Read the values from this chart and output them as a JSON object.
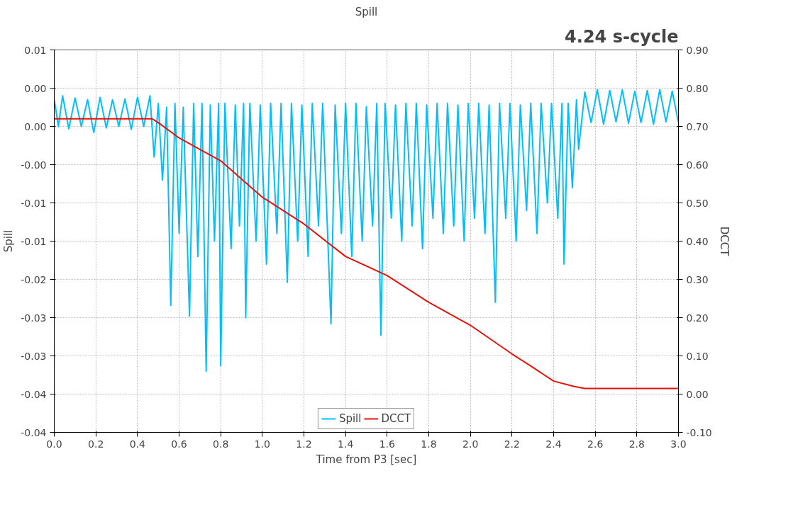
{
  "chart_data": {
    "type": "line",
    "title": "Spill",
    "xlabel": "Time from P3 [sec]",
    "ylabel": "Spill",
    "y2label": "DCCT",
    "annotations": [
      "4.24 s-cycle"
    ],
    "xlim": [
      0,
      3
    ],
    "xticks": [
      {
        "value": 0,
        "label": "0.0"
      },
      {
        "value": 0.2,
        "label": "0.2"
      },
      {
        "value": 0.4,
        "label": "0.4"
      },
      {
        "value": 0.6,
        "label": "0.6"
      },
      {
        "value": 0.8,
        "label": "0.8"
      },
      {
        "value": 1.0,
        "label": "1.0"
      },
      {
        "value": 1.2,
        "label": "1.2"
      },
      {
        "value": 1.4,
        "label": "1.4"
      },
      {
        "value": 1.6,
        "label": "1.6"
      },
      {
        "value": 1.8,
        "label": "1.8"
      },
      {
        "value": 2.0,
        "label": "2.0"
      },
      {
        "value": 2.2,
        "label": "2.2"
      },
      {
        "value": 2.4,
        "label": "2.4"
      },
      {
        "value": 2.6,
        "label": "2.6"
      },
      {
        "value": 2.8,
        "label": "2.8"
      },
      {
        "value": 3.0,
        "label": "3.0"
      }
    ],
    "ylim": [
      -0.04,
      0.01
    ],
    "yticks": [
      {
        "value": 0.01,
        "label": "0.01"
      },
      {
        "value": 0.005,
        "label": "0.00"
      },
      {
        "value": 0,
        "label": "0.00"
      },
      {
        "value": -0.005,
        "label": "-0.00"
      },
      {
        "value": -0.01,
        "label": "-0.01"
      },
      {
        "value": -0.015,
        "label": "-0.01"
      },
      {
        "value": -0.02,
        "label": "-0.02"
      },
      {
        "value": -0.025,
        "label": "-0.03"
      },
      {
        "value": -0.03,
        "label": "-0.03"
      },
      {
        "value": -0.035,
        "label": "-0.04"
      },
      {
        "value": -0.04,
        "label": "-0.04"
      }
    ],
    "y2lim": [
      -0.1,
      0.9
    ],
    "y2ticks": [
      {
        "value": 0.9,
        "label": "0.90"
      },
      {
        "value": 0.8,
        "label": "0.80"
      },
      {
        "value": 0.7,
        "label": "0.70"
      },
      {
        "value": 0.6,
        "label": "0.60"
      },
      {
        "value": 0.5,
        "label": "0.50"
      },
      {
        "value": 0.4,
        "label": "0.40"
      },
      {
        "value": 0.3,
        "label": "0.30"
      },
      {
        "value": 0.2,
        "label": "0.20"
      },
      {
        "value": 0.1,
        "label": "0.10"
      },
      {
        "value": 0.0,
        "label": "0.00"
      },
      {
        "value": -0.1,
        "label": "-0.10"
      }
    ],
    "grid": true,
    "legend": "bottom",
    "series": [
      {
        "name": "Spill",
        "color": "#00bfff",
        "x": [
          0.0,
          0.02,
          0.04,
          0.07,
          0.1,
          0.13,
          0.16,
          0.19,
          0.22,
          0.25,
          0.28,
          0.31,
          0.34,
          0.37,
          0.4,
          0.43,
          0.46,
          0.48,
          0.5,
          0.52,
          0.54,
          0.56,
          0.58,
          0.6,
          0.62,
          0.65,
          0.67,
          0.69,
          0.71,
          0.73,
          0.75,
          0.77,
          0.79,
          0.8,
          0.82,
          0.85,
          0.87,
          0.89,
          0.91,
          0.92,
          0.94,
          0.97,
          0.99,
          1.02,
          1.04,
          1.07,
          1.09,
          1.12,
          1.14,
          1.17,
          1.19,
          1.22,
          1.24,
          1.27,
          1.29,
          1.33,
          1.35,
          1.38,
          1.4,
          1.43,
          1.45,
          1.48,
          1.5,
          1.53,
          1.55,
          1.57,
          1.59,
          1.62,
          1.64,
          1.67,
          1.69,
          1.72,
          1.74,
          1.77,
          1.79,
          1.82,
          1.84,
          1.87,
          1.89,
          1.92,
          1.94,
          1.97,
          1.99,
          2.02,
          2.04,
          2.07,
          2.09,
          2.12,
          2.14,
          2.17,
          2.19,
          2.22,
          2.24,
          2.27,
          2.29,
          2.32,
          2.34,
          2.37,
          2.39,
          2.42,
          2.44,
          2.45,
          2.47,
          2.49,
          2.51,
          2.52,
          2.55,
          2.58,
          2.61,
          2.64,
          2.67,
          2.7,
          2.73,
          2.76,
          2.79,
          2.82,
          2.85,
          2.88,
          2.91,
          2.94,
          2.97,
          3.0
        ],
        "values": [
          0.0035,
          0.0,
          0.004,
          -0.0003,
          0.0037,
          0.0,
          0.0035,
          -0.0008,
          0.0038,
          -0.0002,
          0.0035,
          0.0,
          0.0036,
          -0.0004,
          0.0038,
          0.0,
          0.004,
          -0.004,
          0.003,
          -0.007,
          0.0025,
          -0.0234,
          0.003,
          -0.014,
          0.0025,
          -0.0248,
          0.003,
          -0.017,
          0.003,
          -0.032,
          0.0028,
          -0.015,
          0.003,
          -0.0313,
          0.003,
          -0.016,
          0.0028,
          -0.013,
          0.003,
          -0.025,
          0.003,
          -0.015,
          0.0028,
          -0.018,
          0.003,
          -0.014,
          0.003,
          -0.0204,
          0.003,
          -0.015,
          0.0028,
          -0.017,
          0.003,
          -0.013,
          0.003,
          -0.0258,
          0.0028,
          -0.014,
          0.003,
          -0.017,
          0.003,
          -0.015,
          0.0026,
          -0.013,
          0.003,
          -0.0273,
          0.003,
          -0.012,
          0.0028,
          -0.015,
          0.003,
          -0.013,
          0.003,
          -0.016,
          0.0028,
          -0.012,
          0.003,
          -0.014,
          0.003,
          -0.013,
          0.0028,
          -0.015,
          0.003,
          -0.012,
          0.003,
          -0.014,
          0.0028,
          -0.023,
          0.003,
          -0.012,
          0.003,
          -0.015,
          0.0028,
          -0.011,
          0.003,
          -0.014,
          0.003,
          -0.01,
          0.003,
          -0.012,
          0.003,
          -0.018,
          0.003,
          -0.008,
          0.0035,
          -0.003,
          0.0045,
          0.0005,
          0.0048,
          0.0003,
          0.0047,
          0.0006,
          0.0048,
          0.0004,
          0.0046,
          0.0005,
          0.0047,
          0.0003,
          0.0048,
          0.0006,
          0.0046,
          0.0005
        ]
      },
      {
        "name": "DCCT",
        "color": "#e8120c",
        "axis": "y2",
        "x": [
          0,
          0.47,
          0.5,
          0.6,
          0.8,
          1.0,
          1.2,
          1.4,
          1.6,
          1.8,
          2.0,
          2.2,
          2.3,
          2.4,
          2.5,
          2.55,
          2.6,
          3.0
        ],
        "values": [
          0.72,
          0.72,
          0.71,
          0.67,
          0.61,
          0.515,
          0.445,
          0.36,
          0.31,
          0.24,
          0.18,
          0.105,
          0.07,
          0.034,
          0.02,
          0.015,
          0.015,
          0.015
        ]
      }
    ]
  }
}
